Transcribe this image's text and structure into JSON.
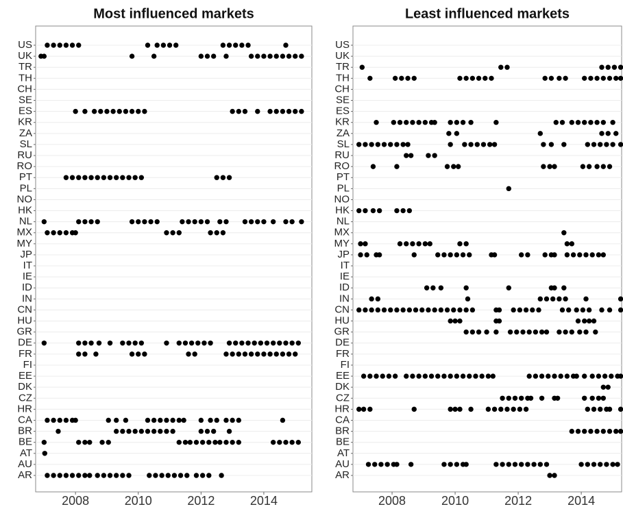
{
  "chart_data": [
    {
      "type": "dotplot",
      "title": "Most influenced markets",
      "color": "#000000",
      "grid": true,
      "categories": [
        "US",
        "UK",
        "TR",
        "TH",
        "CH",
        "SE",
        "ES",
        "KR",
        "ZA",
        "SL",
        "RU",
        "RO",
        "PT",
        "PL",
        "NO",
        "HK",
        "NL",
        "MX",
        "MY",
        "JP",
        "IT",
        "IE",
        "ID",
        "IN",
        "CN",
        "HU",
        "GR",
        "DE",
        "FR",
        "FI",
        "EE",
        "DK",
        "CZ",
        "HR",
        "CA",
        "BR",
        "BE",
        "AT",
        "AU",
        "AR"
      ],
      "xlim": [
        2006.73,
        2015.53
      ],
      "xticks": [
        2008,
        2010,
        2012,
        2014
      ],
      "values": [
        [
          2007.1,
          2007.3,
          2007.5,
          2007.7,
          2007.9,
          2008.1,
          2010.3,
          2010.6,
          2010.8,
          2011.0,
          2011.2,
          2012.7,
          2012.9,
          2013.1,
          2013.3,
          2013.5,
          2014.7
        ],
        [
          2006.9,
          2007.0,
          2009.8,
          2010.5,
          2012.0,
          2012.2,
          2012.4,
          2012.8,
          2013.6,
          2013.8,
          2014.0,
          2014.2,
          2014.4,
          2014.6,
          2014.8,
          2015.0,
          2015.2
        ],
        [],
        [],
        [],
        [],
        [
          2008.0,
          2008.3,
          2008.6,
          2008.8,
          2009.0,
          2009.2,
          2009.4,
          2009.6,
          2009.8,
          2010.0,
          2010.2,
          2013.0,
          2013.2,
          2013.4,
          2013.8,
          2014.2,
          2014.4,
          2014.6,
          2014.8,
          2015.0,
          2015.2
        ],
        [],
        [],
        [],
        [],
        [],
        [
          2007.7,
          2007.9,
          2008.1,
          2008.3,
          2008.5,
          2008.7,
          2008.9,
          2009.1,
          2009.3,
          2009.5,
          2009.7,
          2009.9,
          2010.1,
          2012.5,
          2012.7,
          2012.9
        ],
        [],
        [],
        [],
        [
          2007.0,
          2008.1,
          2008.3,
          2008.5,
          2008.7,
          2009.8,
          2010.0,
          2010.2,
          2010.4,
          2010.6,
          2011.4,
          2011.6,
          2011.8,
          2012.0,
          2012.2,
          2012.6,
          2012.8,
          2013.4,
          2013.6,
          2013.8,
          2014.0,
          2014.3,
          2014.7,
          2014.9,
          2015.2
        ],
        [
          2007.1,
          2007.3,
          2007.5,
          2007.7,
          2007.9,
          2008.0,
          2010.9,
          2011.1,
          2011.3,
          2012.3,
          2012.5,
          2012.7
        ],
        [],
        [],
        [],
        [],
        [],
        [],
        [],
        [],
        [],
        [
          2007.0,
          2008.1,
          2008.3,
          2008.5,
          2008.75,
          2009.1,
          2009.5,
          2009.7,
          2009.9,
          2010.1,
          2010.9,
          2011.3,
          2011.5,
          2011.7,
          2011.9,
          2012.1,
          2012.3,
          2012.9,
          2013.1,
          2013.3,
          2013.5,
          2013.7,
          2013.9,
          2014.1,
          2014.3,
          2014.5,
          2014.7,
          2014.9,
          2015.1
        ],
        [
          2008.1,
          2008.3,
          2008.65,
          2009.8,
          2010.0,
          2010.2,
          2011.6,
          2011.8,
          2012.8,
          2013.0,
          2013.2,
          2013.4,
          2013.6,
          2013.8,
          2014.0,
          2014.2,
          2014.4,
          2014.6,
          2014.8,
          2015.0
        ],
        [],
        [],
        [],
        [],
        [],
        [
          2007.1,
          2007.3,
          2007.5,
          2007.7,
          2007.9,
          2008.0,
          2009.05,
          2009.3,
          2009.6,
          2010.3,
          2010.5,
          2010.7,
          2010.9,
          2011.1,
          2011.3,
          2011.45,
          2012.0,
          2012.3,
          2012.5,
          2012.8,
          2013.0,
          2013.2,
          2014.6
        ],
        [
          2007.45,
          2009.3,
          2009.5,
          2009.7,
          2009.9,
          2010.1,
          2010.3,
          2010.5,
          2010.7,
          2010.9,
          2011.1,
          2012.0,
          2012.2,
          2012.4,
          2012.9
        ],
        [
          2007.0,
          2008.1,
          2008.3,
          2008.45,
          2008.85,
          2009.05,
          2011.3,
          2011.5,
          2011.65,
          2011.85,
          2012.05,
          2012.25,
          2012.45,
          2012.6,
          2012.8,
          2013.0,
          2013.2,
          2014.3,
          2014.5,
          2014.7,
          2014.9,
          2015.1
        ],
        [
          2007.02
        ],
        [],
        [
          2007.1,
          2007.3,
          2007.5,
          2007.7,
          2007.9,
          2008.1,
          2008.3,
          2008.45,
          2008.7,
          2008.9,
          2009.1,
          2009.3,
          2009.5,
          2009.7,
          2010.35,
          2010.55,
          2010.75,
          2010.95,
          2011.15,
          2011.35,
          2011.55,
          2011.85,
          2012.05,
          2012.25,
          2012.65
        ]
      ]
    },
    {
      "type": "dotplot",
      "title": "Least influenced markets",
      "color": "#000000",
      "grid": true,
      "categories": [
        "US",
        "UK",
        "TR",
        "TH",
        "CH",
        "SE",
        "ES",
        "KR",
        "ZA",
        "SL",
        "RU",
        "RO",
        "PT",
        "PL",
        "NO",
        "HK",
        "NL",
        "MX",
        "MY",
        "JP",
        "IT",
        "IE",
        "ID",
        "IN",
        "CN",
        "HU",
        "GR",
        "DE",
        "FR",
        "FI",
        "EE",
        "DK",
        "CZ",
        "HR",
        "CA",
        "BR",
        "BE",
        "AT",
        "AU",
        "AR"
      ],
      "xlim": [
        2006.76,
        2015.28
      ],
      "xticks": [
        2008,
        2010,
        2012,
        2014
      ],
      "values": [
        [],
        [],
        [
          2007.05,
          2011.45,
          2011.65,
          2014.65,
          2014.85,
          2015.05,
          2015.25
        ],
        [
          2007.3,
          2008.1,
          2008.3,
          2008.5,
          2008.7,
          2010.15,
          2010.35,
          2010.55,
          2010.75,
          2010.95,
          2011.15,
          2012.85,
          2013.05,
          2013.3,
          2013.5,
          2014.1,
          2014.3,
          2014.5,
          2014.7,
          2014.9,
          2015.1,
          2015.25
        ],
        [],
        [],
        [],
        [
          2007.5,
          2008.05,
          2008.25,
          2008.45,
          2008.65,
          2008.85,
          2009.05,
          2009.25,
          2009.35,
          2009.85,
          2010.05,
          2010.25,
          2010.5,
          2011.3,
          2013.2,
          2013.4,
          2013.7,
          2013.9,
          2014.1,
          2014.3,
          2014.5,
          2014.7,
          2015.0
        ],
        [
          2009.8,
          2010.05,
          2012.7,
          2014.65,
          2014.85,
          2015.1
        ],
        [
          2006.95,
          2007.15,
          2007.35,
          2007.55,
          2007.75,
          2007.95,
          2008.15,
          2008.35,
          2008.5,
          2009.85,
          2010.3,
          2010.5,
          2010.7,
          2010.9,
          2011.1,
          2011.25,
          2012.8,
          2013.05,
          2013.45,
          2014.2,
          2014.4,
          2014.6,
          2014.8,
          2015.0,
          2015.25
        ],
        [
          2008.45,
          2008.6,
          2009.15,
          2009.35
        ],
        [
          2007.4,
          2008.15,
          2009.75,
          2009.95,
          2010.1,
          2012.8,
          2013.0,
          2013.15,
          2014.05,
          2014.25,
          2014.5,
          2014.7,
          2014.9
        ],
        [],
        [
          2011.7
        ],
        [],
        [
          2006.95,
          2007.15,
          2007.4,
          2007.6,
          2008.15,
          2008.35,
          2008.55
        ],
        [],
        [
          2013.45
        ],
        [
          2007.0,
          2007.15,
          2008.25,
          2008.45,
          2008.65,
          2008.85,
          2009.05,
          2009.2,
          2010.15,
          2010.35,
          2013.55,
          2013.7
        ],
        [
          2007.0,
          2007.2,
          2007.5,
          2007.6,
          2008.7,
          2009.45,
          2009.65,
          2009.85,
          2010.05,
          2010.25,
          2010.45,
          2011.15,
          2011.25,
          2012.1,
          2012.3,
          2012.85,
          2013.05,
          2013.15,
          2013.55,
          2013.75,
          2013.95,
          2014.15,
          2014.35,
          2014.55,
          2014.7
        ],
        [],
        [],
        [
          2009.1,
          2009.3,
          2009.55,
          2010.35,
          2011.7,
          2013.05,
          2013.15,
          2013.45
        ],
        [
          2007.35,
          2007.55,
          2010.4,
          2012.7,
          2012.9,
          2013.1,
          2013.3,
          2013.5,
          2014.15,
          2015.25
        ],
        [
          2006.95,
          2007.15,
          2007.35,
          2007.55,
          2007.75,
          2007.95,
          2008.15,
          2008.35,
          2008.55,
          2008.75,
          2008.95,
          2009.15,
          2009.35,
          2009.55,
          2009.75,
          2009.95,
          2010.15,
          2010.35,
          2010.55,
          2011.3,
          2011.4,
          2011.85,
          2012.05,
          2012.25,
          2012.45,
          2012.65,
          2013.4,
          2013.6,
          2013.85,
          2014.05,
          2014.25,
          2014.65,
          2014.9,
          2015.25
        ],
        [
          2009.85,
          2010.0,
          2010.15,
          2011.3,
          2011.4,
          2013.9,
          2014.1,
          2014.25,
          2014.4
        ],
        [
          2010.35,
          2010.55,
          2010.75,
          2011.0,
          2011.3,
          2011.75,
          2011.95,
          2012.15,
          2012.35,
          2012.55,
          2012.75,
          2012.9,
          2013.3,
          2013.5,
          2013.7,
          2013.95,
          2014.15,
          2014.45
        ],
        [],
        [],
        [],
        [
          2007.1,
          2007.3,
          2007.5,
          2007.7,
          2007.9,
          2008.1,
          2008.45,
          2008.65,
          2008.85,
          2009.05,
          2009.25,
          2009.45,
          2009.65,
          2009.85,
          2010.05,
          2010.25,
          2010.45,
          2010.65,
          2010.85,
          2011.05,
          2011.2,
          2012.35,
          2012.55,
          2012.75,
          2012.95,
          2013.15,
          2013.35,
          2013.55,
          2013.75,
          2013.85,
          2014.1,
          2014.35,
          2014.55,
          2014.75,
          2014.95,
          2015.15,
          2015.25
        ],
        [
          2014.7,
          2014.85
        ],
        [
          2011.5,
          2011.7,
          2011.9,
          2012.1,
          2012.3,
          2012.4,
          2012.75,
          2013.15,
          2013.25,
          2014.1,
          2014.35,
          2014.55,
          2014.7
        ],
        [
          2006.95,
          2007.1,
          2007.3,
          2008.7,
          2009.85,
          2010.0,
          2010.15,
          2010.5,
          2011.05,
          2011.25,
          2011.45,
          2011.65,
          2011.85,
          2012.05,
          2012.25,
          2014.2,
          2014.4,
          2014.6,
          2014.8,
          2014.9,
          2015.25
        ],
        [],
        [
          2013.7,
          2013.9,
          2014.1,
          2014.3,
          2014.5,
          2014.7,
          2014.9,
          2015.1,
          2015.25
        ],
        [],
        [],
        [
          2007.25,
          2007.45,
          2007.65,
          2007.85,
          2008.05,
          2008.15,
          2008.6,
          2009.65,
          2009.85,
          2010.05,
          2010.25,
          2010.35,
          2011.3,
          2011.5,
          2011.7,
          2011.9,
          2012.1,
          2012.3,
          2012.5,
          2012.7,
          2012.9,
          2014.0,
          2014.2,
          2014.4,
          2014.6,
          2014.8,
          2015.0,
          2015.15
        ],
        [
          2013.0,
          2013.15
        ]
      ]
    }
  ]
}
